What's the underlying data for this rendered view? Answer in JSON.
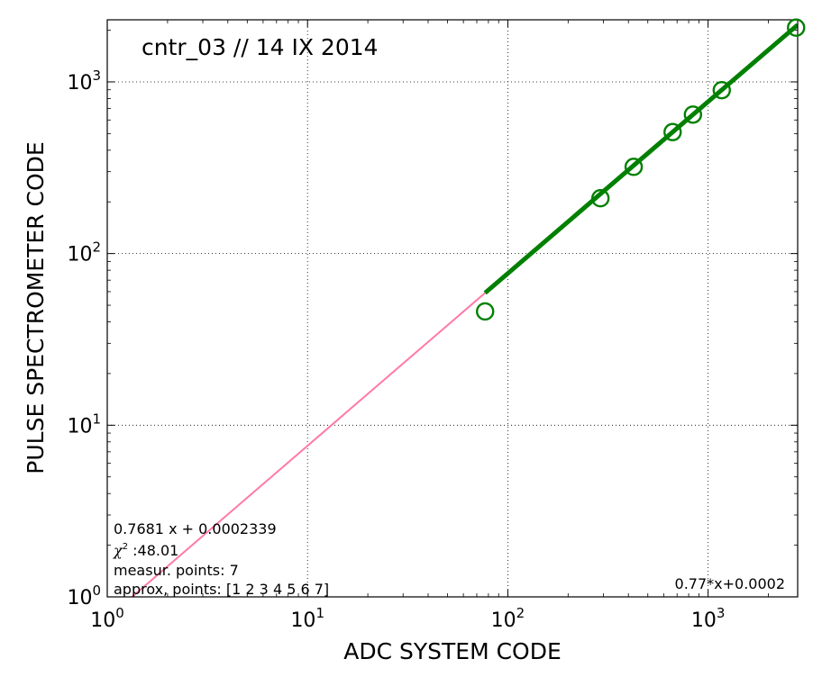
{
  "chart_data": {
    "type": "scatter",
    "title": "cntr_03 // 14 IX 2014",
    "xlabel": "ADC  SYSTEM  CODE",
    "ylabel": "PULSE  SPECTROMETER  CODE",
    "xscale": "log",
    "yscale": "log",
    "xlim": [
      1,
      2800
    ],
    "ylim": [
      1,
      2300
    ],
    "grid": true,
    "x_ticks": [
      {
        "value": 1,
        "base": "10",
        "exp": "0"
      },
      {
        "value": 10,
        "base": "10",
        "exp": "1"
      },
      {
        "value": 100,
        "base": "10",
        "exp": "2"
      },
      {
        "value": 1000,
        "base": "10",
        "exp": "3"
      }
    ],
    "y_ticks": [
      {
        "value": 1,
        "base": "10",
        "exp": "0"
      },
      {
        "value": 10,
        "base": "10",
        "exp": "1"
      },
      {
        "value": 100,
        "base": "10",
        "exp": "2"
      },
      {
        "value": 1000,
        "base": "10",
        "exp": "3"
      }
    ],
    "series": [
      {
        "type": "scatter",
        "marker": "open-circle",
        "color": "#008000",
        "x": [
          77,
          290,
          425,
          665,
          840,
          1170,
          2750
        ],
        "y": [
          46,
          210,
          320,
          510,
          645,
          895,
          2070
        ]
      },
      {
        "type": "line",
        "color": "#ff7aa6",
        "x": [
          1.33,
          77
        ],
        "y": [
          1.0,
          59
        ]
      },
      {
        "type": "line",
        "color": "#008000",
        "x": [
          77,
          2800
        ],
        "y": [
          59,
          2150
        ]
      }
    ],
    "annotations": {
      "fit_equation": "0.7681 x + 0.0002339",
      "chi_symbol": "χ",
      "chi_sup": "2",
      "chi_value": " :48.01",
      "measur_points": "measur. points: 7",
      "approx_points": "approx, points: [1 2 3 4 5 6 7]",
      "fit_short": "0.77*x+0.0002"
    }
  }
}
